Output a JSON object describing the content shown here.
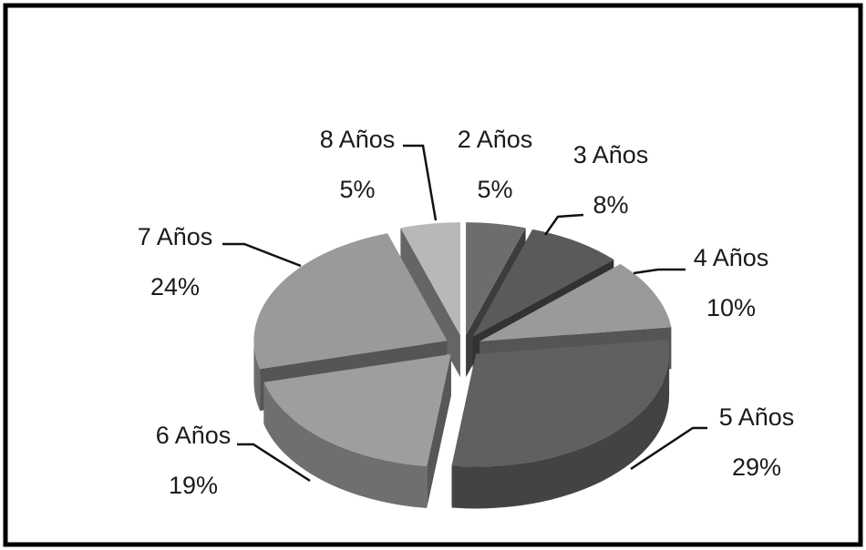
{
  "chart_data": {
    "type": "pie",
    "categories": [
      "2 Años",
      "3 Años",
      "4 Años",
      "5 Años",
      "6 Años",
      "7 Años",
      "8 Años"
    ],
    "values": [
      5,
      8,
      10,
      29,
      19,
      24,
      5
    ],
    "value_labels": [
      "5%",
      "8%",
      "10%",
      "29%",
      "19%",
      "24%",
      "5%"
    ],
    "colors": [
      "#6d6d6d",
      "#5a5a5a",
      "#9a9a9a",
      "#606060",
      "#9e9e9e",
      "#9a9a9a",
      "#b8b8b8"
    ]
  }
}
